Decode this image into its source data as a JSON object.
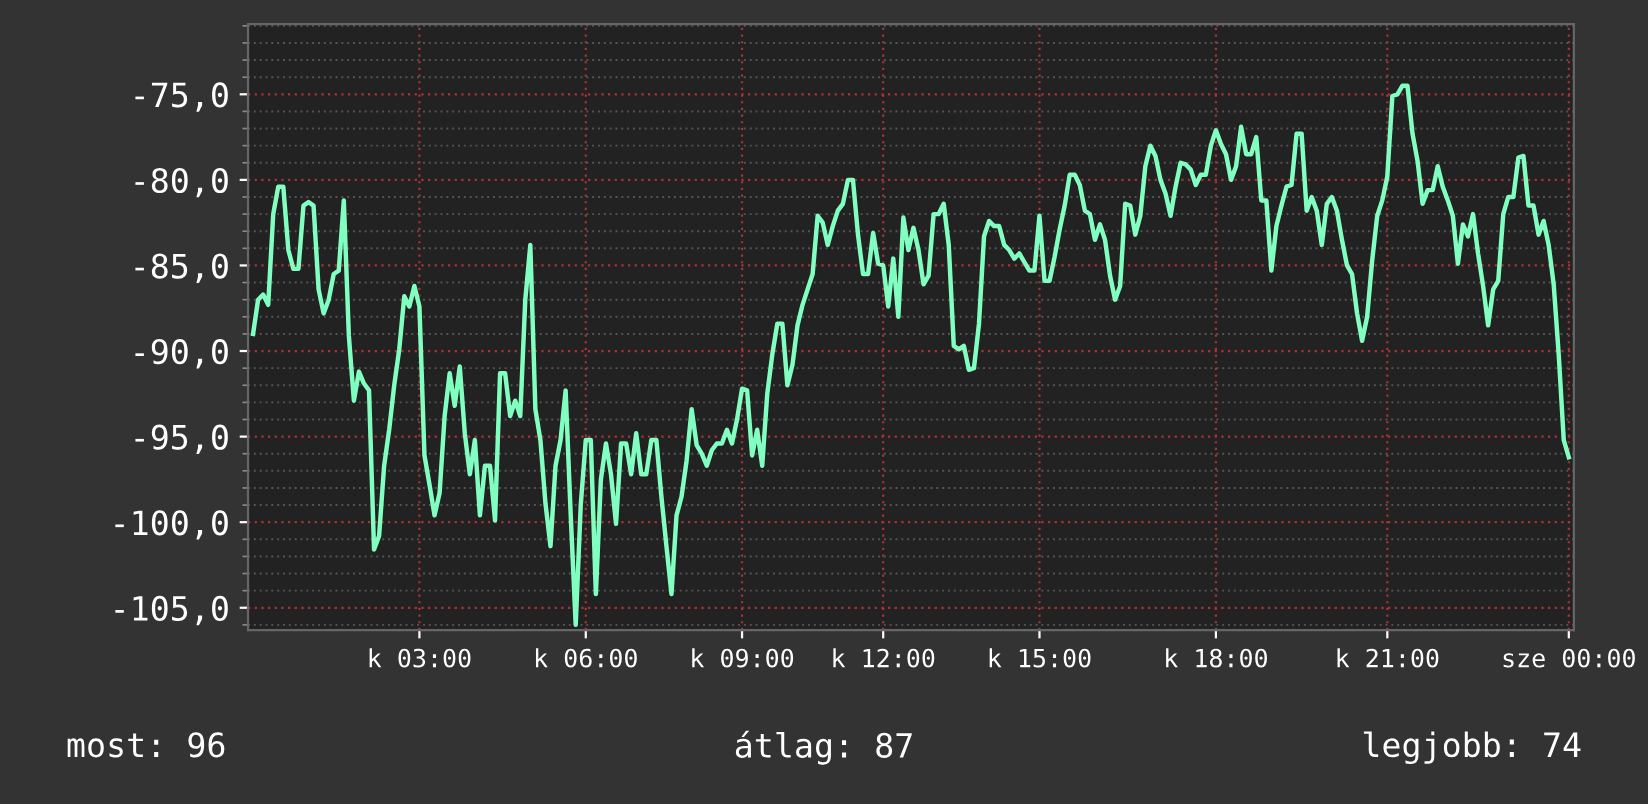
{
  "chart_data": {
    "type": "line",
    "color": "#80ffc0",
    "grid": true,
    "legend": false,
    "categories": [
      null,
      null,
      null,
      null,
      null,
      null,
      null,
      null,
      null,
      null,
      null,
      null,
      null,
      null,
      null,
      null,
      null,
      null,
      null,
      null,
      null,
      null,
      null,
      null,
      null,
      null,
      null,
      null,
      null,
      null,
      null,
      null,
      null,
      "k 03:00",
      null,
      null,
      null,
      null,
      null,
      null,
      null,
      null,
      null,
      null,
      null,
      null,
      null,
      null,
      null,
      null,
      null,
      null,
      null,
      null,
      null,
      null,
      null,
      null,
      null,
      null,
      null,
      null,
      null,
      null,
      null,
      null,
      "k 06:00",
      null,
      null,
      null,
      null,
      null,
      null,
      null,
      null,
      null,
      null,
      null,
      null,
      null,
      null,
      null,
      null,
      null,
      null,
      null,
      null,
      null,
      null,
      null,
      null,
      null,
      null,
      null,
      null,
      null,
      null,
      "k 09:00",
      null,
      null,
      null,
      null,
      null,
      null,
      null,
      null,
      null,
      null,
      null,
      null,
      null,
      null,
      null,
      null,
      null,
      null,
      null,
      null,
      null,
      null,
      null,
      null,
      null,
      null,
      null,
      "k 12:00",
      null,
      null,
      null,
      null,
      null,
      null,
      null,
      null,
      null,
      null,
      null,
      null,
      null,
      null,
      null,
      null,
      null,
      null,
      null,
      null,
      null,
      null,
      null,
      null,
      null,
      null,
      null,
      null,
      null,
      null,
      "k 15:00",
      null,
      null,
      null,
      null,
      null,
      null,
      null,
      null,
      null,
      null,
      null,
      null,
      null,
      null,
      null,
      null,
      null,
      null,
      null,
      null,
      null,
      null,
      null,
      null,
      null,
      null,
      null,
      null,
      null,
      null,
      null,
      null,
      null,
      null,
      "k 18:00",
      null,
      null,
      null,
      null,
      null,
      null,
      null,
      null,
      null,
      null,
      null,
      null,
      null,
      null,
      null,
      null,
      null,
      null,
      null,
      null,
      null,
      null,
      null,
      null,
      null,
      null,
      null,
      null,
      null,
      null,
      null,
      null,
      null,
      "k 21:00",
      null,
      null,
      null,
      null,
      null,
      null,
      null,
      null,
      null,
      null,
      null,
      null,
      null,
      null,
      null,
      null,
      null,
      null,
      null,
      null,
      null,
      null,
      null,
      null,
      null,
      null,
      null,
      null,
      null,
      null,
      null,
      null,
      null,
      null,
      null,
      "sze 00:00"
    ],
    "values": [
      -89.0,
      -87.0,
      -86.7,
      -87.3,
      -82.0,
      -80.4,
      -80.4,
      -84.1,
      -85.2,
      -85.2,
      -81.5,
      -81.3,
      -81.5,
      -86.4,
      -87.8,
      -87.0,
      -85.5,
      -85.3,
      -81.2,
      -89.1,
      -92.9,
      -91.2,
      -91.9,
      -92.3,
      -101.6,
      -100.8,
      -96.7,
      -94.6,
      -92.0,
      -89.9,
      -86.8,
      -87.4,
      -86.2,
      -87.4,
      -96.1,
      -97.8,
      -99.6,
      -98.3,
      -93.8,
      -91.3,
      -93.2,
      -90.9,
      -94.8,
      -97.2,
      -95.2,
      -99.6,
      -96.7,
      -96.7,
      -99.9,
      -91.3,
      -91.3,
      -93.8,
      -92.9,
      -93.8,
      -87.0,
      -83.8,
      -93.4,
      -95.2,
      -98.9,
      -101.4,
      -96.7,
      -95.2,
      -92.3,
      -99.5,
      -106.0,
      -99.0,
      -95.2,
      -95.2,
      -104.2,
      -97.5,
      -95.4,
      -97.2,
      -100.1,
      -95.4,
      -95.4,
      -97.2,
      -94.8,
      -97.2,
      -97.2,
      -95.2,
      -95.2,
      -98.5,
      -101.4,
      -104.2,
      -99.6,
      -98.5,
      -96.4,
      -93.4,
      -95.5,
      -96.0,
      -96.7,
      -95.8,
      -95.4,
      -95.4,
      -94.6,
      -95.4,
      -94.0,
      -92.2,
      -92.3,
      -96.1,
      -94.6,
      -96.7,
      -92.5,
      -90.2,
      -88.4,
      -88.4,
      -92.0,
      -90.8,
      -88.5,
      -87.3,
      -86.4,
      -85.5,
      -82.1,
      -82.5,
      -83.8,
      -82.7,
      -81.8,
      -81.4,
      -80.0,
      -80.0,
      -83.2,
      -85.5,
      -85.5,
      -83.1,
      -84.9,
      -85.0,
      -87.4,
      -84.6,
      -88.0,
      -82.2,
      -84.1,
      -82.8,
      -84.1,
      -86.1,
      -85.6,
      -82.0,
      -82.0,
      -81.4,
      -83.8,
      -89.7,
      -89.9,
      -89.7,
      -91.1,
      -91.0,
      -88.4,
      -83.3,
      -82.4,
      -82.7,
      -82.7,
      -83.8,
      -84.1,
      -84.6,
      -84.3,
      -84.8,
      -85.3,
      -85.3,
      -82.1,
      -85.9,
      -85.9,
      -84.5,
      -82.9,
      -81.5,
      -79.7,
      -79.7,
      -80.3,
      -81.8,
      -82.0,
      -83.5,
      -82.6,
      -83.5,
      -85.6,
      -87.0,
      -86.2,
      -81.4,
      -81.5,
      -83.2,
      -82.1,
      -79.2,
      -78.0,
      -78.6,
      -80.0,
      -80.8,
      -82.1,
      -80.4,
      -79.0,
      -79.1,
      -79.4,
      -80.3,
      -79.7,
      -79.7,
      -78.0,
      -77.1,
      -77.9,
      -78.5,
      -80.0,
      -79.2,
      -76.9,
      -78.5,
      -78.5,
      -77.5,
      -81.2,
      -81.2,
      -85.3,
      -82.7,
      -81.5,
      -80.4,
      -80.3,
      -77.3,
      -77.3,
      -81.8,
      -81.0,
      -81.8,
      -83.8,
      -81.4,
      -81.0,
      -81.8,
      -83.5,
      -85.0,
      -85.5,
      -87.8,
      -89.4,
      -88.0,
      -84.7,
      -82.1,
      -81.2,
      -79.8,
      -75.1,
      -75.0,
      -74.5,
      -74.5,
      -77.3,
      -78.9,
      -81.4,
      -80.6,
      -80.6,
      -79.2,
      -80.4,
      -81.2,
      -82.1,
      -84.9,
      -82.6,
      -83.3,
      -82.0,
      -84.3,
      -86.2,
      -88.5,
      -86.4,
      -85.9,
      -82.0,
      -81.0,
      -81.0,
      -78.7,
      -78.6,
      -81.5,
      -81.5,
      -83.2,
      -82.4,
      -83.8,
      -86.1,
      -90.2,
      -95.2,
      -96.2
    ],
    "ylim": [
      -106.3,
      -70.9
    ],
    "yticks": [
      {
        "value": -105,
        "label": "-105,0"
      },
      {
        "value": -100,
        "label": "-100,0"
      },
      {
        "value": -95,
        "label": "-95,0"
      },
      {
        "value": -90,
        "label": "-90,0"
      },
      {
        "value": -85,
        "label": "-85,0"
      },
      {
        "value": -80,
        "label": "-80,0"
      },
      {
        "value": -75,
        "label": "-75,0"
      }
    ],
    "annotations": [
      "most: 96",
      "átlag: 87",
      "legjobb: 74"
    ]
  }
}
